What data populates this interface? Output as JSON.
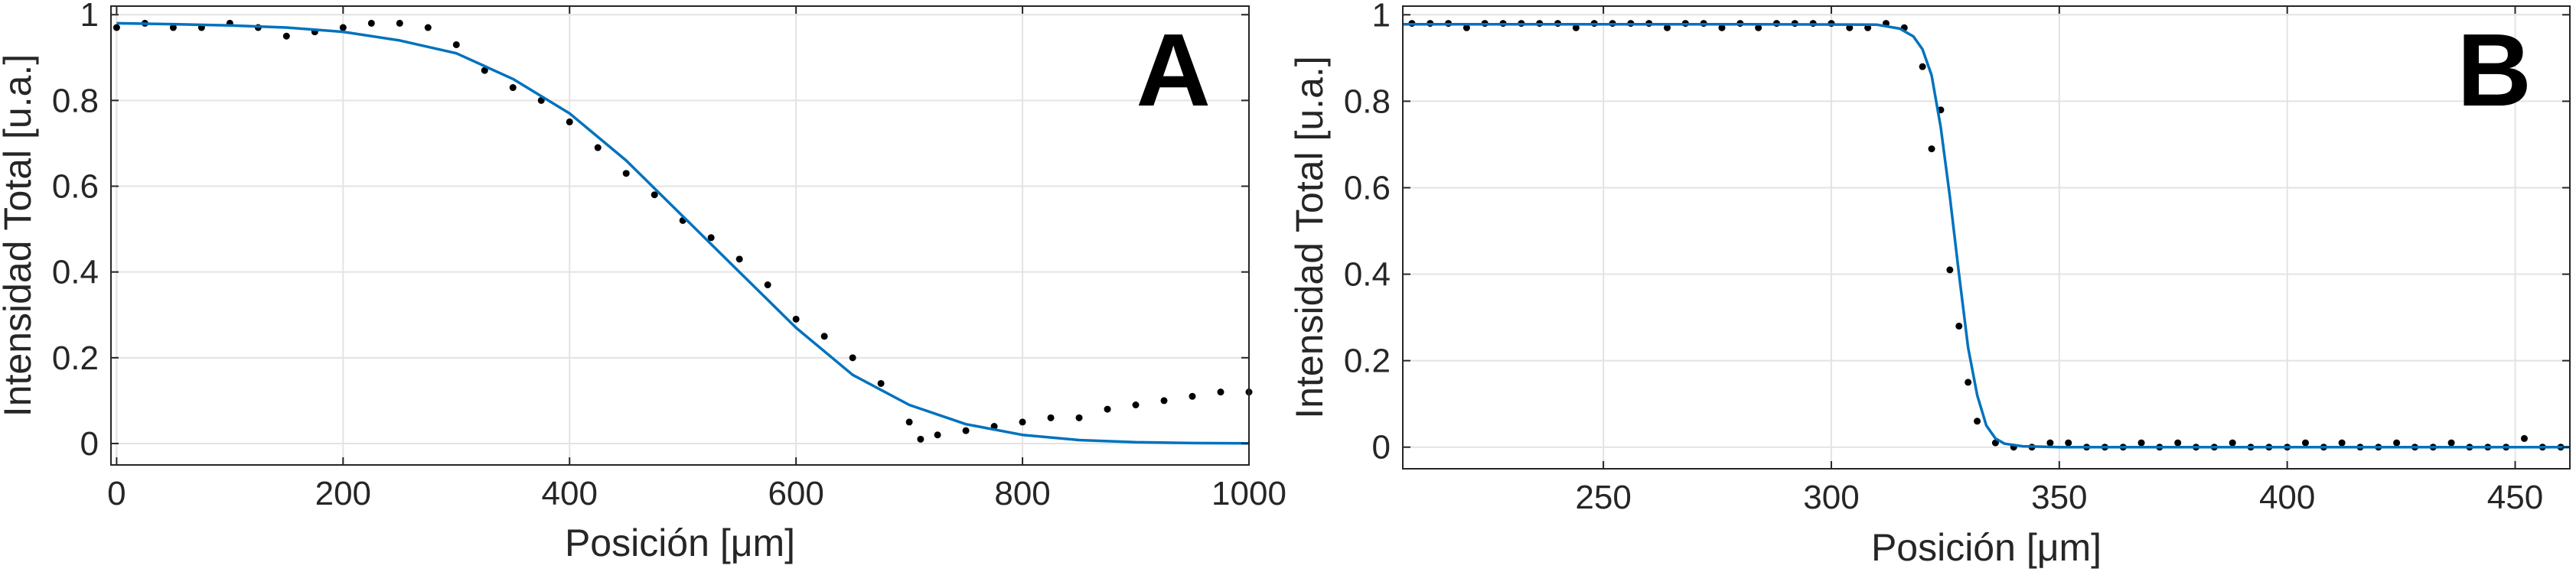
{
  "chart_data": [
    {
      "type": "scatter",
      "panel_label": "A",
      "xlabel": "Posición [μm]",
      "ylabel": "Intensidad Total [u.a.]",
      "xlim": [
        -5,
        1000
      ],
      "ylim": [
        -0.05,
        1.02
      ],
      "x_ticks": [
        0,
        200,
        400,
        600,
        800,
        1000
      ],
      "x_tick_labels": [
        "0",
        "200",
        "400",
        "600",
        "800",
        "1000"
      ],
      "y_ticks": [
        0,
        0.2,
        0.4,
        0.6,
        0.8,
        1
      ],
      "y_tick_labels": [
        "0",
        "0.2",
        "0.4",
        "0.6",
        "0.8",
        "1"
      ],
      "grid": true,
      "colors": {
        "points": "#000000",
        "fit": "#0072bd",
        "grid": "#e3e3e3",
        "axes": "#262626"
      },
      "series": [
        {
          "kind": "points",
          "x": [
            0,
            25,
            50,
            75,
            100,
            125,
            150,
            175,
            200,
            225,
            250,
            275,
            300,
            325,
            350,
            375,
            400,
            425,
            450,
            475,
            500,
            525,
            550,
            575,
            600,
            625,
            650,
            675,
            700,
            710,
            725,
            750,
            775,
            800,
            825,
            850,
            875,
            900,
            925,
            950,
            975,
            1000
          ],
          "y": [
            0.97,
            0.98,
            0.97,
            0.97,
            0.98,
            0.97,
            0.95,
            0.96,
            0.97,
            0.98,
            0.98,
            0.97,
            0.93,
            0.87,
            0.83,
            0.8,
            0.75,
            0.69,
            0.63,
            0.58,
            0.52,
            0.48,
            0.43,
            0.37,
            0.29,
            0.25,
            0.2,
            0.14,
            0.05,
            0.01,
            0.02,
            0.03,
            0.04,
            0.05,
            0.06,
            0.06,
            0.08,
            0.09,
            0.1,
            0.11,
            0.12,
            0.12
          ]
        },
        {
          "kind": "fit",
          "x": [
            0,
            50,
            100,
            150,
            200,
            250,
            300,
            350,
            400,
            450,
            500,
            550,
            600,
            650,
            700,
            750,
            800,
            850,
            900,
            950,
            1000
          ],
          "y": [
            0.98,
            0.978,
            0.975,
            0.97,
            0.96,
            0.94,
            0.91,
            0.85,
            0.77,
            0.66,
            0.53,
            0.4,
            0.27,
            0.16,
            0.09,
            0.045,
            0.02,
            0.008,
            0.003,
            0.001,
            0.0005
          ]
        }
      ]
    },
    {
      "type": "scatter",
      "panel_label": "B",
      "xlabel": "Posición [μm]",
      "ylabel": "Intensidad Total [u.a.]",
      "xlim": [
        206,
        462
      ],
      "ylim": [
        -0.05,
        1.02
      ],
      "x_ticks": [
        250,
        300,
        350,
        400,
        450
      ],
      "x_tick_labels": [
        "250",
        "300",
        "350",
        "400",
        "450"
      ],
      "y_ticks": [
        0,
        0.2,
        0.4,
        0.6,
        0.8,
        1
      ],
      "y_tick_labels": [
        "0",
        "0.2",
        "0.4",
        "0.6",
        "0.8",
        "1"
      ],
      "grid": true,
      "colors": {
        "points": "#000000",
        "fit": "#0072bd",
        "grid": "#e3e3e3",
        "axes": "#262626"
      },
      "series": [
        {
          "kind": "points",
          "x": [
            208,
            212,
            216,
            220,
            224,
            228,
            232,
            236,
            240,
            244,
            248,
            252,
            256,
            260,
            264,
            268,
            272,
            276,
            280,
            284,
            288,
            292,
            296,
            300,
            304,
            308,
            312,
            316,
            320,
            322,
            324,
            326,
            328,
            330,
            332,
            336,
            340,
            344,
            348,
            352,
            356,
            360,
            364,
            368,
            372,
            376,
            380,
            384,
            388,
            392,
            396,
            400,
            404,
            408,
            412,
            416,
            420,
            424,
            428,
            432,
            436,
            440,
            444,
            448,
            452,
            456,
            460
          ],
          "y": [
            0.98,
            0.98,
            0.98,
            0.97,
            0.98,
            0.98,
            0.98,
            0.98,
            0.98,
            0.97,
            0.98,
            0.98,
            0.98,
            0.98,
            0.97,
            0.98,
            0.98,
            0.97,
            0.98,
            0.97,
            0.98,
            0.98,
            0.98,
            0.98,
            0.97,
            0.97,
            0.98,
            0.97,
            0.88,
            0.69,
            0.78,
            0.41,
            0.28,
            0.15,
            0.06,
            0.01,
            0.0,
            0.0,
            0.01,
            0.01,
            0.0,
            0.0,
            0.0,
            0.01,
            0.0,
            0.01,
            0.0,
            0.0,
            0.01,
            0.0,
            0.0,
            0.0,
            0.01,
            0.0,
            0.01,
            0.0,
            0.0,
            0.01,
            0.0,
            0.0,
            0.01,
            0.0,
            0.0,
            0.0,
            0.02,
            0.0,
            0.0
          ]
        },
        {
          "kind": "fit",
          "x": [
            206,
            240,
            280,
            310,
            315,
            318,
            320,
            322,
            324,
            326,
            328,
            330,
            332,
            334,
            336,
            338,
            342,
            350,
            380,
            420,
            462
          ],
          "y": [
            0.978,
            0.978,
            0.978,
            0.977,
            0.968,
            0.95,
            0.92,
            0.86,
            0.74,
            0.58,
            0.4,
            0.23,
            0.12,
            0.05,
            0.02,
            0.008,
            0.002,
            0.0,
            0.0,
            0.0,
            0.0
          ]
        }
      ]
    }
  ]
}
